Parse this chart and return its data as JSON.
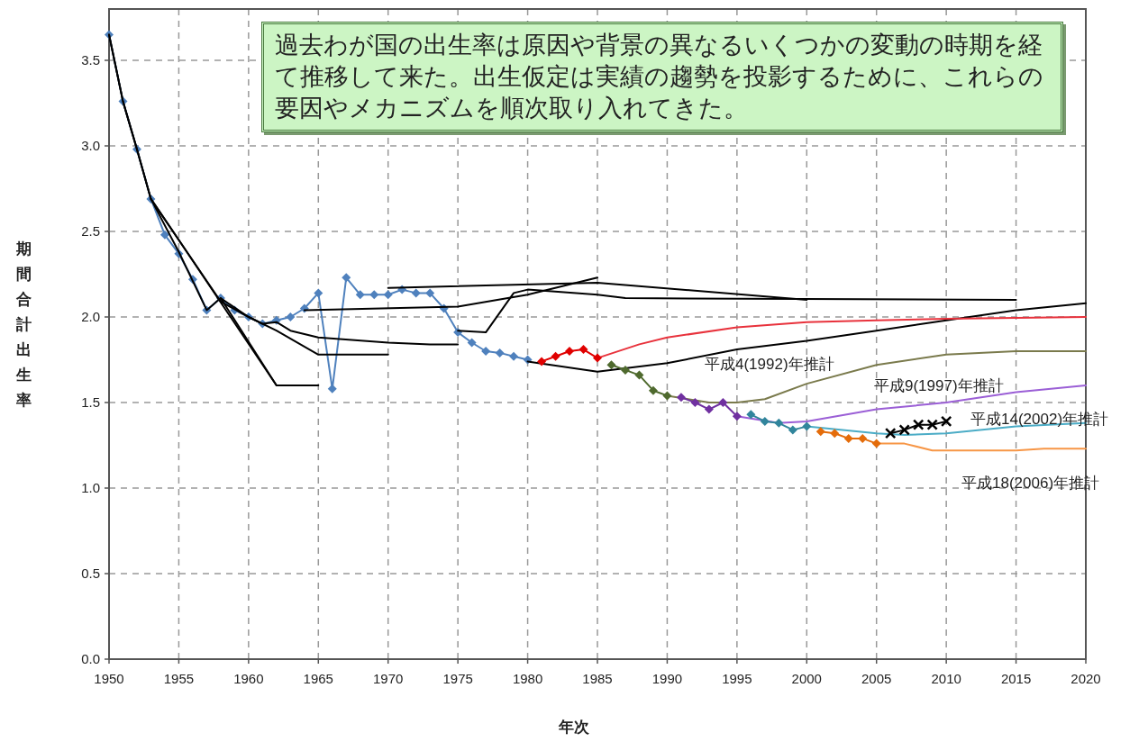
{
  "chart_data": {
    "type": "line",
    "xlabel": "年次",
    "ylabel": "期間合計出生率",
    "xlim": [
      1950,
      2020
    ],
    "xticks": [
      1950,
      1955,
      1960,
      1965,
      1970,
      1975,
      1980,
      1985,
      1990,
      1995,
      2000,
      2005,
      2010,
      2015,
      2020
    ],
    "ylim": [
      0,
      3.8
    ],
    "yticks": [
      {
        "value": 0,
        "label": "0.0"
      },
      {
        "value": 0.5,
        "label": "0.5"
      },
      {
        "value": 1,
        "label": "1.0"
      },
      {
        "value": 1.5,
        "label": "1.5"
      },
      {
        "value": 2,
        "label": "2.0"
      },
      {
        "value": 2.5,
        "label": "2.5"
      },
      {
        "value": 3,
        "label": "3.0"
      },
      {
        "value": 3.5,
        "label": "3.5"
      }
    ],
    "grid": true,
    "line_style": "solid",
    "series": [
      {
        "color": "#4f81bd",
        "marker": "diamond",
        "x": [
          1950,
          1951,
          1952,
          1953,
          1954,
          1955,
          1956,
          1957,
          1958,
          1959,
          1960,
          1961,
          1962,
          1963,
          1964,
          1965,
          1966,
          1967,
          1968,
          1969,
          1970,
          1971,
          1972,
          1973,
          1974,
          1975,
          1976,
          1977,
          1978,
          1979,
          1980
        ],
        "values": [
          3.65,
          3.26,
          2.98,
          2.69,
          2.48,
          2.37,
          2.22,
          2.04,
          2.11,
          2.04,
          2.0,
          1.96,
          1.98,
          2.0,
          2.05,
          2.14,
          1.58,
          2.23,
          2.13,
          2.13,
          2.13,
          2.16,
          2.14,
          2.14,
          2.05,
          1.91,
          1.85,
          1.8,
          1.79,
          1.77,
          1.75
        ]
      },
      {
        "color": "#000000",
        "marker": "none",
        "x": [
          1950,
          1951,
          1952,
          1953,
          1955,
          1957,
          1958,
          1962,
          1965
        ],
        "values": [
          3.65,
          3.26,
          2.98,
          2.69,
          2.38,
          2.04,
          2.11,
          1.6,
          1.6
        ]
      },
      {
        "color": "#000000",
        "marker": "none",
        "x": [
          1950,
          1951,
          1952,
          1953,
          1955,
          1962
        ],
        "values": [
          3.65,
          3.26,
          2.98,
          2.69,
          2.45,
          1.6
        ]
      },
      {
        "color": "#000000",
        "marker": "none",
        "x": [
          1953,
          1955,
          1958,
          1960,
          1962,
          1965,
          1970
        ],
        "values": [
          2.69,
          2.45,
          2.09,
          2.0,
          1.92,
          1.78,
          1.78
        ]
      },
      {
        "color": "#000000",
        "marker": "none",
        "x": [
          1958,
          1960,
          1961,
          1962,
          1963,
          1965,
          1970,
          1973,
          1975
        ],
        "values": [
          2.11,
          2.0,
          1.96,
          1.97,
          1.92,
          1.88,
          1.85,
          1.84,
          1.84
        ]
      },
      {
        "color": "#000000",
        "marker": "none",
        "x": [
          1964,
          1975,
          1980,
          1985
        ],
        "values": [
          2.04,
          2.06,
          2.13,
          2.23
        ]
      },
      {
        "color": "#000000",
        "marker": "none",
        "x": [
          1970,
          1985,
          2000
        ],
        "values": [
          2.17,
          2.2,
          2.1
        ]
      },
      {
        "color": "#000000",
        "marker": "none",
        "x": [
          1975,
          1977,
          1979,
          1980,
          1985,
          1987,
          2015
        ],
        "values": [
          1.92,
          1.91,
          2.14,
          2.16,
          2.13,
          2.11,
          2.1
        ]
      },
      {
        "color": "#000000",
        "marker": "none",
        "x": [
          1980,
          1985,
          1990,
          1995,
          2000,
          2005,
          2010,
          2015,
          2020
        ],
        "values": [
          1.74,
          1.68,
          1.73,
          1.81,
          1.86,
          1.92,
          1.98,
          2.04,
          2.08
        ]
      },
      {
        "color": "#e8323c",
        "marker": "none",
        "x": [
          1985,
          1988,
          1990,
          1995,
          2000,
          2005,
          2010,
          2020
        ],
        "values": [
          1.76,
          1.84,
          1.88,
          1.94,
          1.97,
          1.98,
          1.99,
          2.0
        ]
      },
      {
        "color": "#7a7a4c",
        "marker": "none",
        "x": [
          1990,
          1993,
          1995,
          1997,
          2000,
          2005,
          2010,
          2015,
          2020
        ],
        "values": [
          1.54,
          1.5,
          1.5,
          1.52,
          1.61,
          1.72,
          1.78,
          1.8,
          1.8
        ]
      },
      {
        "color": "#9b5fd6",
        "marker": "none",
        "x": [
          1995,
          1998,
          2000,
          2005,
          2010,
          2015,
          2020
        ],
        "values": [
          1.42,
          1.38,
          1.39,
          1.46,
          1.5,
          1.56,
          1.6
        ]
      },
      {
        "color": "#4bacc6",
        "marker": "none",
        "x": [
          2000,
          2005,
          2007,
          2010,
          2015,
          2020
        ],
        "values": [
          1.36,
          1.32,
          1.31,
          1.32,
          1.36,
          1.38
        ]
      },
      {
        "color": "#f79646",
        "marker": "none",
        "x": [
          2005,
          2007,
          2009,
          2015,
          2017,
          2020
        ],
        "values": [
          1.26,
          1.26,
          1.22,
          1.22,
          1.23,
          1.23
        ]
      },
      {
        "color": "#e00000",
        "marker": "diamond",
        "x": [
          1981,
          1982,
          1983,
          1984,
          1985
        ],
        "values": [
          1.74,
          1.77,
          1.8,
          1.81,
          1.76
        ]
      },
      {
        "color": "#4f6a2e",
        "marker": "diamond",
        "x": [
          1986,
          1987,
          1988,
          1989,
          1990
        ],
        "values": [
          1.72,
          1.69,
          1.66,
          1.57,
          1.54
        ]
      },
      {
        "color": "#7030a0",
        "marker": "diamond",
        "x": [
          1991,
          1992,
          1993,
          1994,
          1995
        ],
        "values": [
          1.53,
          1.5,
          1.46,
          1.5,
          1.42
        ]
      },
      {
        "color": "#31859c",
        "marker": "diamond",
        "x": [
          1996,
          1997,
          1998,
          1999,
          2000
        ],
        "values": [
          1.43,
          1.39,
          1.38,
          1.34,
          1.36
        ]
      },
      {
        "color": "#e46c0a",
        "marker": "diamond",
        "x": [
          2001,
          2002,
          2003,
          2004,
          2005
        ],
        "values": [
          1.33,
          1.32,
          1.29,
          1.29,
          1.26
        ]
      },
      {
        "color": "#000000",
        "marker": "cross",
        "x": [
          2006,
          2007,
          2008,
          2009,
          2010
        ],
        "values": [
          1.32,
          1.34,
          1.37,
          1.37,
          1.39
        ]
      }
    ],
    "annotations": [
      "過去わが国の出生率は原因や背景の異なるいくつかの変動の時期を経て推移して来た。出生仮定は実績の趨勢を投影するために、これらの要因やメカニズムを順次取り入れてきた。",
      "平成4(1992)年推計",
      "平成9(1997)年推計",
      "平成14(2002)年推計",
      "平成18(2006)年推計"
    ]
  }
}
